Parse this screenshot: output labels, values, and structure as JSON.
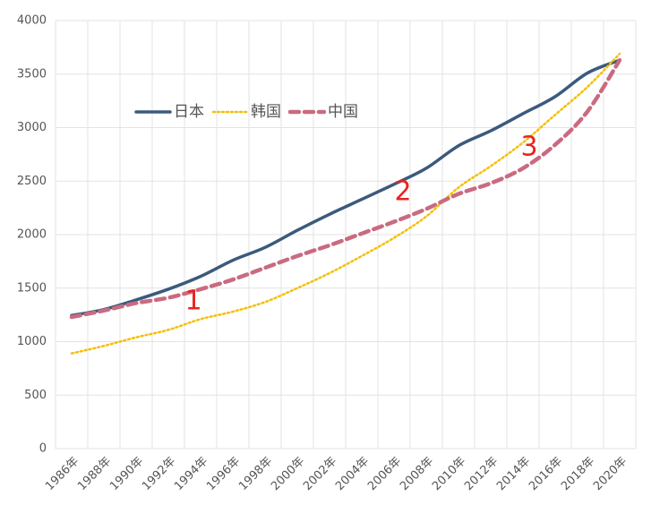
{
  "chart_data": {
    "type": "line",
    "categories": [
      "1986年",
      "1988年",
      "1990年",
      "1992年",
      "1994年",
      "1996年",
      "1998年",
      "2000年",
      "2002年",
      "2004年",
      "2006年",
      "2008年",
      "2010年",
      "2012年",
      "2014年",
      "2016年",
      "2018年",
      "2020年"
    ],
    "series": [
      {
        "name": "日本",
        "color": "#3b5a7d",
        "style": "solid",
        "values": [
          1245,
          1300,
          1390,
          1490,
          1610,
          1760,
          1880,
          2040,
          2190,
          2330,
          2470,
          2620,
          2830,
          2970,
          3130,
          3290,
          3510,
          3630
        ]
      },
      {
        "name": "韩国",
        "color": "#f5bf0a",
        "style": "dotted",
        "values": [
          890,
          960,
          1040,
          1110,
          1210,
          1280,
          1370,
          1500,
          1640,
          1800,
          1970,
          2170,
          2440,
          2640,
          2860,
          3120,
          3380,
          3690
        ]
      },
      {
        "name": "中国",
        "color": "#c96b80",
        "style": "dashed",
        "values": [
          1230,
          1290,
          1360,
          1410,
          1490,
          1580,
          1690,
          1800,
          1900,
          2010,
          2120,
          2240,
          2380,
          2480,
          2620,
          2840,
          3150,
          3630
        ]
      }
    ],
    "annotations": [
      "1",
      "2",
      "3"
    ],
    "ylim": [
      0,
      4000
    ],
    "yticks": [
      0,
      500,
      1000,
      1500,
      2000,
      2500,
      3000,
      3500,
      4000
    ],
    "grid": true,
    "legend": "top-left"
  }
}
